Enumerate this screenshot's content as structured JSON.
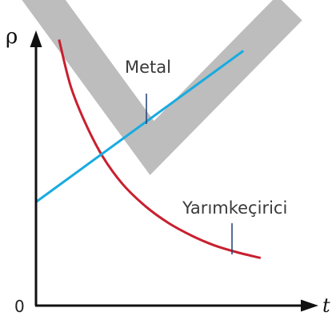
{
  "chart_data": {
    "type": "line",
    "title": "",
    "xlabel": "t",
    "ylabel": "ρ",
    "origin_label": "0",
    "xlim": [
      0,
      10
    ],
    "ylim": [
      0,
      10
    ],
    "grid": false,
    "legend": "none",
    "series": [
      {
        "name": "Metal",
        "x": [
          0,
          7.2
        ],
        "y": [
          3.7,
          9.1
        ]
      },
      {
        "name": "Yarımkeçirici",
        "x": [
          0.8,
          1.2,
          1.7,
          2.3,
          3.0,
          3.8,
          4.6,
          5.4,
          6.2,
          7.0,
          7.8
        ],
        "y": [
          9.5,
          7.85,
          6.55,
          5.35,
          4.35,
          3.55,
          2.95,
          2.5,
          2.15,
          1.9,
          1.7
        ]
      }
    ],
    "colors": {
      "metal_line": "#19abe0",
      "semiconductor_line": "#c8202f",
      "highlight_band": "#bdbdbd",
      "axes": "#111111",
      "leader": "#1f3e78"
    }
  }
}
